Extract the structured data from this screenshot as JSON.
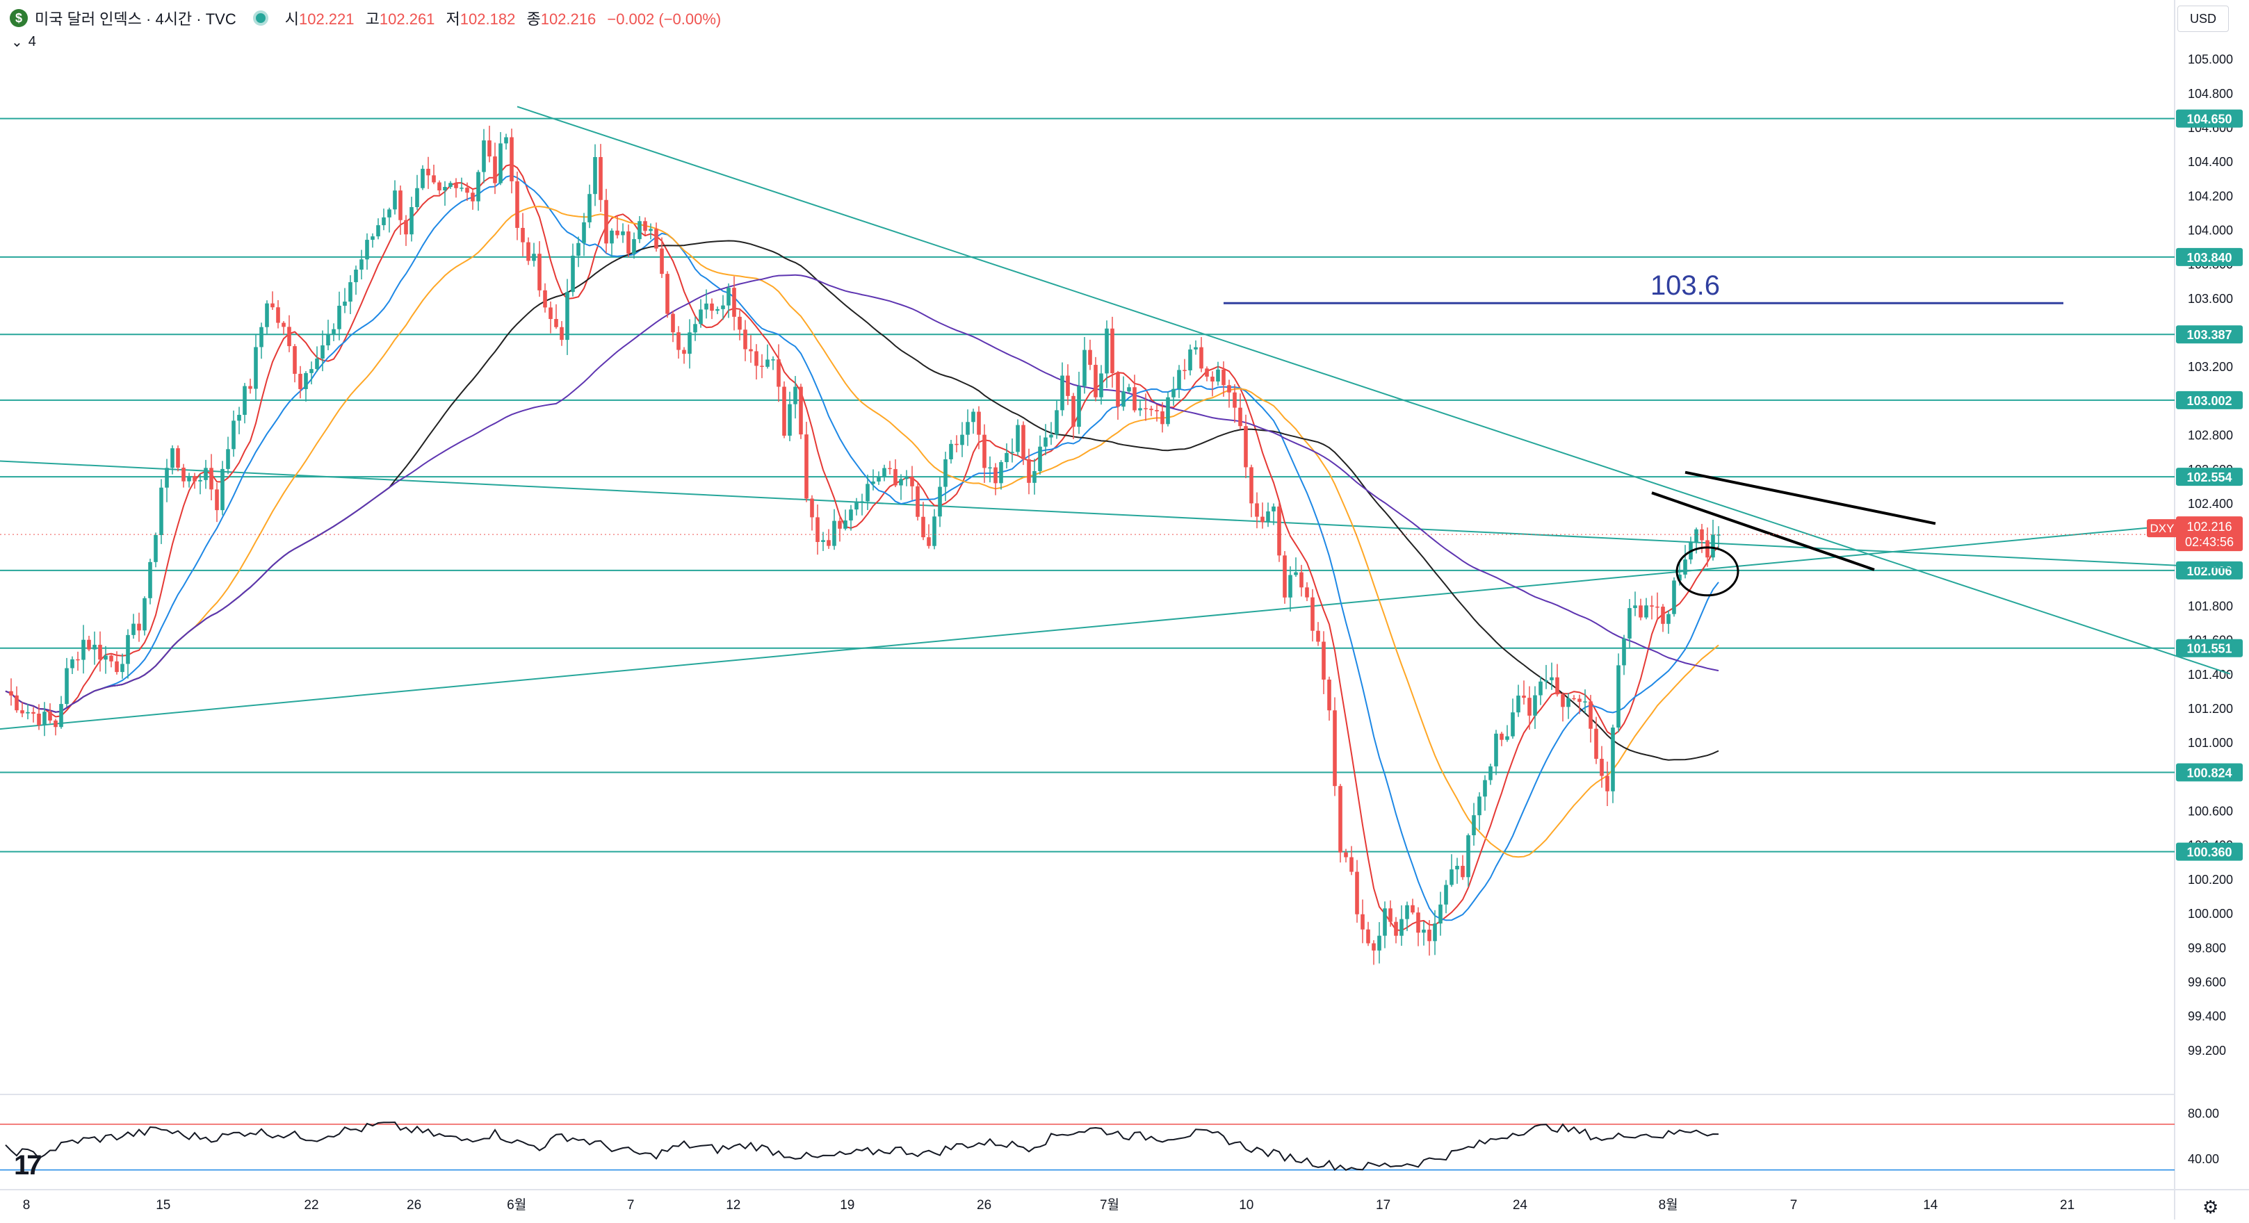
{
  "header": {
    "symbol_badge": "$",
    "title": "미국 달러 인덱스 · 4시간 · TVC",
    "ohlc": [
      {
        "k": "시",
        "v": "102.221"
      },
      {
        "k": "고",
        "v": "102.261"
      },
      {
        "k": "저",
        "v": "102.182"
      },
      {
        "k": "종",
        "v": "102.216"
      },
      {
        "k": "",
        "v": "−0.002 (−0.00%)"
      }
    ],
    "indicator_toggle": "⌄",
    "indicator_count": "4",
    "currency": "USD"
  },
  "colors": {
    "up": "#26a69a",
    "down": "#ef5350",
    "level_line": "#26a69a",
    "target_line": "#303f9f",
    "ma_red": "#e53935",
    "ma_blue": "#1e88e5",
    "ma_orange": "#ffa726",
    "ma_black": "#212121",
    "ma_purple": "#5e35b1",
    "rsi": "#131722",
    "price_tag": "#ef5350"
  },
  "chart_data": [
    {
      "type": "candlestick",
      "title": "",
      "ylim": [
        99.0,
        105.1
      ],
      "y_ticks": [
        "105.000",
        "104.800",
        "104.600",
        "104.400",
        "104.200",
        "104.000",
        "103.800",
        "103.600",
        "103.400",
        "103.200",
        "103.000",
        "102.800",
        "102.600",
        "102.400",
        "102.200",
        "102.000",
        "101.800",
        "101.600",
        "101.400",
        "101.200",
        "101.000",
        "100.800",
        "100.600",
        "100.400",
        "100.200",
        "100.000",
        "99.800",
        "99.600",
        "99.400",
        "99.200"
      ],
      "x_ticks": [
        "8",
        "15",
        "22",
        "26",
        "6월",
        "7",
        "12",
        "19",
        "26",
        "7월",
        "10",
        "17",
        "24",
        "8월",
        "7",
        "14",
        "21"
      ],
      "x_range_bars": [
        0,
        390
      ],
      "horizontal_levels": [
        104.65,
        103.84,
        103.387,
        103.002,
        102.554,
        102.006,
        101.551,
        100.824,
        100.36
      ],
      "target_level": {
        "label": "103.6",
        "value": 103.57,
        "from_bar": 219,
        "to_bar": 370
      },
      "last_price": {
        "value": 102.216,
        "symbol": "DXY",
        "price": "102.216",
        "countdown": "02:43:56"
      },
      "trendlines": [
        {
          "kind": "support",
          "from": [
            -10,
            101.05
          ],
          "to": [
            400,
            102.3
          ]
        },
        {
          "kind": "resistance",
          "from": [
            -10,
            102.66
          ],
          "to": [
            400,
            102.02
          ]
        },
        {
          "kind": "resistance",
          "from": [
            92,
            104.72
          ],
          "to": [
            400,
            101.4
          ]
        },
        {
          "kind": "drawn",
          "from": [
            302,
            102.58
          ],
          "to": [
            347,
            102.28
          ]
        },
        {
          "kind": "drawn",
          "from": [
            296,
            102.46
          ],
          "to": [
            336,
            102.01
          ]
        }
      ],
      "ellipse": {
        "center": [
          306,
          102.0
        ],
        "rx_bars": 5.5,
        "ry": 0.14
      },
      "series": [
        {
          "name": "",
          "note": "4h OHLC closes (estimated)",
          "anchors": [
            [
              0,
              101.3
            ],
            [
              3,
              101.2
            ],
            [
              6,
              101.15
            ],
            [
              9,
              101.1
            ],
            [
              11,
              101.4
            ],
            [
              14,
              101.6
            ],
            [
              18,
              101.5
            ],
            [
              20,
              101.45
            ],
            [
              24,
              101.7
            ],
            [
              26,
              102.0
            ],
            [
              28,
              102.5
            ],
            [
              30,
              102.7
            ],
            [
              33,
              102.5
            ],
            [
              36,
              102.6
            ],
            [
              38,
              102.4
            ],
            [
              41,
              102.9
            ],
            [
              44,
              103.1
            ],
            [
              47,
              103.6
            ],
            [
              50,
              103.4
            ],
            [
              53,
              103.1
            ],
            [
              56,
              103.3
            ],
            [
              59,
              103.4
            ],
            [
              62,
              103.7
            ],
            [
              65,
              103.9
            ],
            [
              68,
              104.1
            ],
            [
              70,
              104.2
            ],
            [
              72,
              104.0
            ],
            [
              75,
              104.3
            ],
            [
              78,
              104.2
            ],
            [
              81,
              104.3
            ],
            [
              84,
              104.2
            ],
            [
              86,
              104.5
            ],
            [
              88,
              104.3
            ],
            [
              90,
              104.6
            ],
            [
              92,
              104.0
            ],
            [
              95,
              103.8
            ],
            [
              97,
              103.5
            ],
            [
              100,
              103.4
            ],
            [
              102,
              103.8
            ],
            [
              104,
              104.1
            ],
            [
              106,
              104.4
            ],
            [
              108,
              103.9
            ],
            [
              110,
              104.0
            ],
            [
              112,
              103.9
            ],
            [
              114,
              104.1
            ],
            [
              116,
              104.0
            ],
            [
              118,
              103.7
            ],
            [
              120,
              103.4
            ],
            [
              122,
              103.3
            ],
            [
              124,
              103.5
            ],
            [
              126,
              103.6
            ],
            [
              128,
              103.5
            ],
            [
              130,
              103.7
            ],
            [
              132,
              103.4
            ],
            [
              134,
              103.3
            ],
            [
              136,
              103.2
            ],
            [
              138,
              103.3
            ],
            [
              140,
              102.8
            ],
            [
              142,
              103.1
            ],
            [
              144,
              102.4
            ],
            [
              146,
              102.2
            ],
            [
              148,
              102.2
            ],
            [
              150,
              102.3
            ],
            [
              152,
              102.4
            ],
            [
              155,
              102.5
            ],
            [
              158,
              102.6
            ],
            [
              160,
              102.5
            ],
            [
              162,
              102.6
            ],
            [
              164,
              102.3
            ],
            [
              166,
              102.1
            ],
            [
              168,
              102.5
            ],
            [
              170,
              102.7
            ],
            [
              172,
              102.8
            ],
            [
              174,
              102.9
            ],
            [
              176,
              102.6
            ],
            [
              178,
              102.5
            ],
            [
              180,
              102.7
            ],
            [
              182,
              102.8
            ],
            [
              184,
              102.5
            ],
            [
              186,
              102.7
            ],
            [
              188,
              102.8
            ],
            [
              190,
              103.1
            ],
            [
              192,
              102.9
            ],
            [
              194,
              103.3
            ],
            [
              196,
              103.0
            ],
            [
              198,
              103.4
            ],
            [
              200,
              103.0
            ],
            [
              202,
              103.1
            ],
            [
              204,
              102.9
            ],
            [
              206,
              103.0
            ],
            [
              208,
              102.9
            ],
            [
              210,
              103.1
            ],
            [
              212,
              103.2
            ],
            [
              214,
              103.3
            ],
            [
              216,
              103.1
            ],
            [
              218,
              103.2
            ],
            [
              220,
              103.0
            ],
            [
              222,
              102.9
            ],
            [
              224,
              102.4
            ],
            [
              226,
              102.3
            ],
            [
              228,
              102.4
            ],
            [
              230,
              101.9
            ],
            [
              232,
              102.0
            ],
            [
              234,
              101.8
            ],
            [
              236,
              101.6
            ],
            [
              238,
              101.2
            ],
            [
              240,
              100.4
            ],
            [
              242,
              100.2
            ],
            [
              244,
              99.9
            ],
            [
              246,
              99.8
            ],
            [
              248,
              100.0
            ],
            [
              250,
              99.9
            ],
            [
              252,
              100.0
            ],
            [
              254,
              99.9
            ],
            [
              256,
              99.8
            ],
            [
              258,
              100.1
            ],
            [
              260,
              100.3
            ],
            [
              262,
              100.2
            ],
            [
              264,
              100.6
            ],
            [
              266,
              100.8
            ],
            [
              268,
              101.0
            ],
            [
              270,
              101.0
            ],
            [
              272,
              101.3
            ],
            [
              274,
              101.2
            ],
            [
              276,
              101.3
            ],
            [
              278,
              101.4
            ],
            [
              280,
              101.2
            ],
            [
              282,
              101.3
            ],
            [
              284,
              101.2
            ],
            [
              286,
              100.9
            ],
            [
              288,
              100.7
            ],
            [
              290,
              101.5
            ],
            [
              292,
              101.8
            ],
            [
              294,
              101.7
            ],
            [
              296,
              101.8
            ],
            [
              298,
              101.7
            ],
            [
              300,
              101.9
            ],
            [
              302,
              102.1
            ],
            [
              304,
              102.3
            ],
            [
              306,
              102.1
            ],
            [
              308,
              102.216
            ]
          ]
        }
      ]
    },
    {
      "type": "line",
      "title": "",
      "ylim": [
        20,
        90
      ],
      "y_ticks": [
        "80.00",
        "40.00"
      ],
      "levels": [
        70,
        30
      ],
      "series": [
        {
          "name": "",
          "anchors": [
            [
              0,
              48
            ],
            [
              6,
              43
            ],
            [
              12,
              55
            ],
            [
              18,
              58
            ],
            [
              24,
              62
            ],
            [
              28,
              66
            ],
            [
              32,
              60
            ],
            [
              38,
              58
            ],
            [
              44,
              64
            ],
            [
              48,
              62
            ],
            [
              52,
              60
            ],
            [
              56,
              58
            ],
            [
              60,
              64
            ],
            [
              64,
              66
            ],
            [
              68,
              70
            ],
            [
              72,
              66
            ],
            [
              76,
              62
            ],
            [
              82,
              56
            ],
            [
              88,
              62
            ],
            [
              92,
              54
            ],
            [
              96,
              50
            ],
            [
              100,
              60
            ],
            [
              104,
              56
            ],
            [
              110,
              48
            ],
            [
              116,
              42
            ],
            [
              122,
              52
            ],
            [
              128,
              48
            ],
            [
              134,
              52
            ],
            [
              140,
              44
            ],
            [
              146,
              40
            ],
            [
              152,
              44
            ],
            [
              160,
              48
            ],
            [
              166,
              44
            ],
            [
              172,
              52
            ],
            [
              178,
              54
            ],
            [
              184,
              50
            ],
            [
              190,
              62
            ],
            [
              196,
              66
            ],
            [
              202,
              60
            ],
            [
              208,
              58
            ],
            [
              214,
              62
            ],
            [
              218,
              60
            ],
            [
              222,
              52
            ],
            [
              226,
              46
            ],
            [
              230,
              42
            ],
            [
              236,
              36
            ],
            [
              242,
              32
            ],
            [
              248,
              34
            ],
            [
              254,
              36
            ],
            [
              260,
              44
            ],
            [
              266,
              54
            ],
            [
              272,
              64
            ],
            [
              278,
              68
            ],
            [
              284,
              62
            ],
            [
              288,
              56
            ],
            [
              292,
              62
            ],
            [
              298,
              60
            ],
            [
              304,
              66
            ],
            [
              308,
              60
            ]
          ]
        }
      ]
    }
  ]
}
